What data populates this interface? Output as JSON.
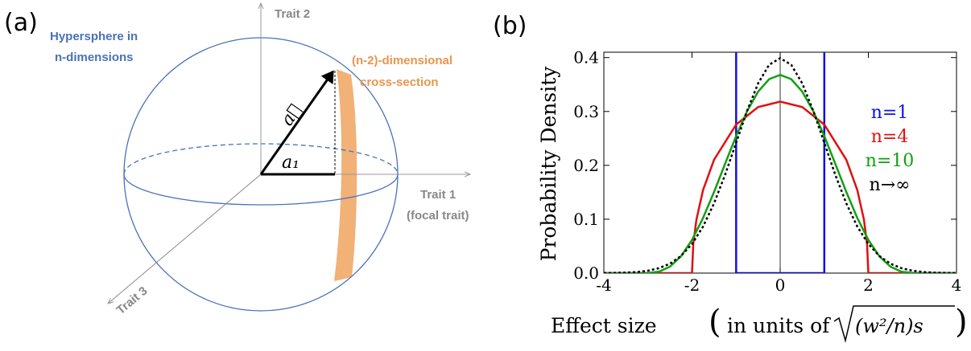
{
  "panel_a": {
    "label": "(a)",
    "hypersphere": [
      "Hypersphere in",
      "n-dimensions"
    ],
    "cross_section": [
      "(n-2)-dimensional",
      "cross-section"
    ],
    "trait2": "Trait 2",
    "trait1": [
      "Trait 1",
      "(focal trait)"
    ],
    "trait3": "Trait 3",
    "vector": "a⃗",
    "component": "a₁"
  },
  "chart_data": {
    "type": "line",
    "panel_label": "(b)",
    "y_label": "Probability Density",
    "x_label": "Effect size",
    "x_label_inner": "in units of",
    "x_label_sqrt": "(w²/n)s",
    "xlim": [
      -4,
      4
    ],
    "ylim": [
      0,
      0.41
    ],
    "xticks": [
      -4,
      -2,
      0,
      2,
      4
    ],
    "yticks": [
      {
        "value": 0,
        "label": "0.0"
      },
      0.1,
      0.2,
      0.3,
      0.4
    ],
    "series": [
      {
        "name": "n=1",
        "color": "#1010e0",
        "style": "solid",
        "x": [
          -1,
          -1,
          1,
          1
        ],
        "values": [
          0.41,
          0,
          0,
          0.41
        ]
      },
      {
        "name": "n=4",
        "color": "#e01010",
        "style": "solid",
        "x": [
          -4,
          -2,
          -1.97,
          -1.9,
          -1.75,
          -1.5,
          -1,
          -0.5,
          0,
          0.5,
          1,
          1.5,
          1.75,
          1.9,
          1.97,
          2,
          4
        ],
        "values": [
          0,
          0,
          0.0549,
          0.0994,
          0.1541,
          0.2105,
          0.2757,
          0.3082,
          0.3183,
          0.3082,
          0.2757,
          0.2105,
          0.1541,
          0.0994,
          0.0549,
          0,
          0
        ]
      },
      {
        "name": "n=10",
        "color": "#10a010",
        "style": "solid",
        "x": [
          -4,
          -3.16,
          -3,
          -2.75,
          -2.5,
          -2.25,
          -2,
          -1.75,
          -1.5,
          -1.25,
          -1,
          -0.75,
          -0.5,
          -0.25,
          0,
          0.25,
          0.5,
          0.75,
          1,
          1.25,
          1.5,
          1.75,
          2,
          2.25,
          2.5,
          2.75,
          3,
          3.16,
          4
        ],
        "values": [
          0,
          0,
          0.0001,
          0.0026,
          0.0119,
          0.0311,
          0.0616,
          0.1023,
          0.1508,
          0.2031,
          0.2545,
          0.3005,
          0.3368,
          0.36,
          0.368,
          0.36,
          0.3368,
          0.3005,
          0.2545,
          0.2031,
          0.1508,
          0.1023,
          0.0616,
          0.0311,
          0.0119,
          0.0026,
          0.0001,
          0,
          0
        ]
      },
      {
        "name": "n→∞",
        "color": "#000000",
        "style": "dotted",
        "x": [
          -4,
          -3.75,
          -3.5,
          -3.25,
          -3,
          -2.75,
          -2.5,
          -2.25,
          -2,
          -1.75,
          -1.5,
          -1.25,
          -1,
          -0.75,
          -0.5,
          -0.25,
          0,
          0.25,
          0.5,
          0.75,
          1,
          1.25,
          1.5,
          1.75,
          2,
          2.25,
          2.5,
          2.75,
          3,
          3.25,
          3.5,
          3.75,
          4
        ],
        "values": [
          0.0001,
          0.0004,
          0.0009,
          0.002,
          0.0044,
          0.0091,
          0.0175,
          0.0317,
          0.054,
          0.0863,
          0.1295,
          0.1826,
          0.242,
          0.3011,
          0.3521,
          0.3867,
          0.3989,
          0.3867,
          0.3521,
          0.3011,
          0.242,
          0.1826,
          0.1295,
          0.0863,
          0.054,
          0.0317,
          0.0175,
          0.0091,
          0.0044,
          0.002,
          0.0009,
          0.0004,
          0.0001
        ]
      }
    ]
  }
}
